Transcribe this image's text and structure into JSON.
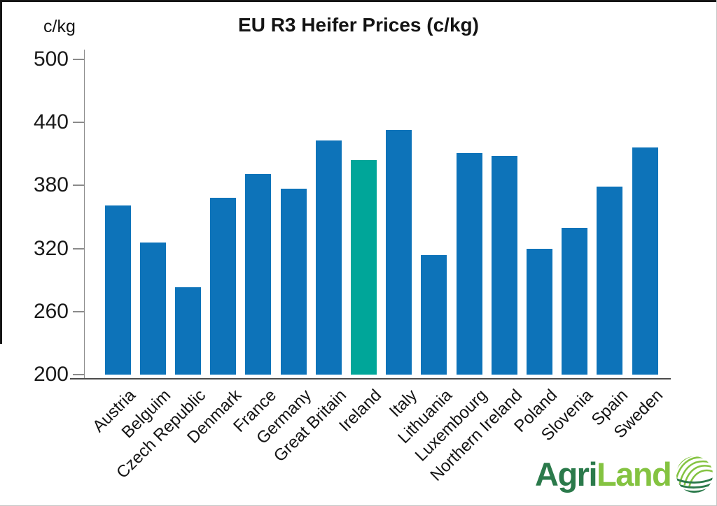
{
  "title": "EU R3 Heifer Prices (c/kg)",
  "axis_unit_label": "c/kg",
  "chart_data": {
    "type": "bar",
    "title": "EU R3 Heifer Prices (c/kg)",
    "ylabel": "c/kg",
    "xlabel": "",
    "ylim": [
      200,
      500
    ],
    "yticks": [
      500,
      440,
      380,
      320,
      260,
      200
    ],
    "grid": false,
    "legend": "none",
    "categories": [
      "Austria",
      "Belguim",
      "Czech Republic",
      "Denmark",
      "France",
      "Germany",
      "Great Britain",
      "Ireland",
      "Italy",
      "Lithuania",
      "Luxembourg",
      "Northern Ireland",
      "Poland",
      "Slovenia",
      "Spain",
      "Sweden"
    ],
    "values": [
      361,
      326,
      283,
      368,
      391,
      377,
      423,
      404,
      433,
      314,
      411,
      408,
      320,
      340,
      379,
      416
    ],
    "highlight_category": "Ireland",
    "colors": {
      "bar": "#0d73b9",
      "highlight": "#00a699",
      "axis": "#8a8a8a",
      "text": "#1a1a1a"
    }
  },
  "logo": {
    "text_primary": "Agri",
    "text_secondary": "Land",
    "color_primary": "#2b7a4b",
    "color_secondary": "#84c341",
    "icon": "agriland-globe-icon"
  }
}
